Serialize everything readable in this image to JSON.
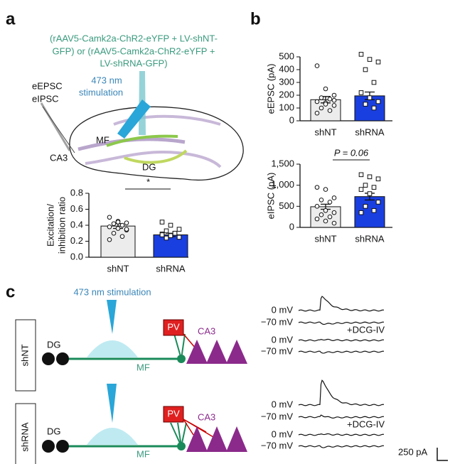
{
  "panel_labels": [
    "a",
    "b",
    "c"
  ],
  "panel_a": {
    "construct_lines": [
      "(rAAV5-Camk2a-ChR2-eYFP + LV-shNT-",
      "GFP) or (rAAV5-Camk2a-ChR2-eYFP +",
      "LV-shRNA-GFP)"
    ],
    "stimulation_lines": [
      "473 nm",
      "stimulation"
    ],
    "recording_lines": [
      "eEPSC",
      "eIPSC"
    ],
    "regions": [
      "MF",
      "CA3",
      "DG"
    ]
  },
  "chart_data": [
    {
      "type": "bar",
      "ylabel_lines": [
        "Excitation/",
        "inhibition ratio"
      ],
      "categories": [
        "shNT",
        "shRNA"
      ],
      "values": [
        0.39,
        0.28
      ],
      "errors": [
        0.03,
        0.02
      ],
      "colors": [
        "#ececec",
        "#1a3fe0"
      ],
      "points": [
        [
          0.5,
          0.45,
          0.43,
          0.42,
          0.4,
          0.38,
          0.36,
          0.34,
          0.3,
          0.26,
          0.22,
          0.44,
          0.35
        ],
        [
          0.44,
          0.4,
          0.35,
          0.33,
          0.3,
          0.29,
          0.27,
          0.25,
          0.24,
          0.3,
          0.28
        ]
      ],
      "ylim": [
        0,
        0.8
      ],
      "yticks": [
        {
          "value": 0,
          "label": "0.0"
        },
        0.2,
        0.4,
        0.6,
        0.8
      ],
      "annotation": "*"
    },
    {
      "type": "bar",
      "ylabel": "eEPSC (pA)",
      "categories": [
        "shNT",
        "shRNA"
      ],
      "values": [
        165,
        195
      ],
      "errors": [
        25,
        30
      ],
      "colors": [
        "#ececec",
        "#1a3fe0"
      ],
      "points": [
        [
          430,
          250,
          200,
          180,
          170,
          150,
          140,
          120,
          100,
          80,
          60,
          130,
          160
        ],
        [
          520,
          480,
          460,
          400,
          300,
          220,
          180,
          150,
          130,
          100
        ]
      ],
      "ylim": [
        0,
        500
      ],
      "yticks": [
        0,
        100,
        200,
        300,
        400,
        500
      ]
    },
    {
      "type": "bar",
      "ylabel": "eIPSC (pA)",
      "categories": [
        "shNT",
        "shRNA"
      ],
      "values": [
        490,
        730
      ],
      "errors": [
        60,
        80
      ],
      "colors": [
        "#ececec",
        "#1a3fe0"
      ],
      "points": [
        [
          950,
          900,
          700,
          650,
          600,
          500,
          400,
          350,
          300,
          250,
          200,
          150,
          100
        ],
        [
          1250,
          1200,
          1150,
          1000,
          950,
          900,
          800,
          600,
          500,
          400,
          350
        ]
      ],
      "ylim": [
        0,
        1500
      ],
      "yticks": [
        0,
        500,
        {
          "value": 1000,
          "label": "1,000"
        },
        {
          "value": 1500,
          "label": "1,500"
        }
      ],
      "annotation": "P = 0.06"
    }
  ],
  "panel_c": {
    "stimulation": "473 nm stimulation",
    "rows": [
      {
        "name": "shNT",
        "dg": "DG",
        "mf": "MF",
        "pv": "PV",
        "ca3": "CA3",
        "traces": [
          "0 mV",
          "−70 mV",
          "+DCG-IV",
          "0 mV",
          "−70 mV"
        ]
      },
      {
        "name": "shRNA",
        "dg": "DG",
        "mf": "MF",
        "pv": "PV",
        "ca3": "CA3",
        "traces": [
          "0 mV",
          "−70 mV",
          "+DCG-IV",
          "0 mV",
          "−70 mV"
        ]
      }
    ],
    "scale_bar": "250 pA"
  }
}
